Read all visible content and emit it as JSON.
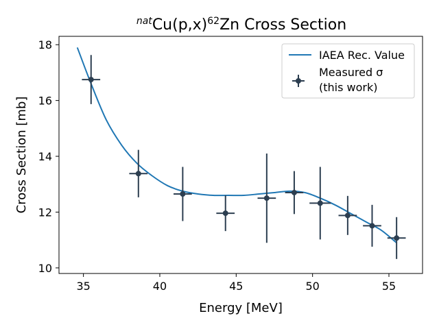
{
  "chart_data": {
    "type": "line",
    "title": {
      "prefix_sup": "nat",
      "main": "Cu(p,x)",
      "mass_sup": "62",
      "suffix": "Zn Cross Section"
    },
    "xlabel": "Energy [MeV]",
    "ylabel": "Cross Section [mb]",
    "xlim": [
      33.4,
      57.2
    ],
    "ylim": [
      9.8,
      18.3
    ],
    "xticks": [
      35,
      40,
      45,
      50,
      55
    ],
    "yticks": [
      10,
      12,
      14,
      16,
      18
    ],
    "grid": false,
    "legend_position": "top-right",
    "series": [
      {
        "name": "IAEA Rec. Value",
        "kind": "line",
        "color": "#1f77b4",
        "x": [
          34.6,
          35.5,
          36.5,
          37.5,
          38.5,
          39.5,
          40.5,
          41.5,
          42.5,
          43.5,
          44.5,
          45.5,
          46.5,
          47.5,
          48.5,
          49.5,
          50.5,
          51.5,
          52.5,
          53.5,
          54.5,
          55.5
        ],
        "y": [
          17.9,
          16.6,
          15.3,
          14.4,
          13.75,
          13.3,
          12.95,
          12.75,
          12.65,
          12.6,
          12.6,
          12.6,
          12.65,
          12.7,
          12.75,
          12.7,
          12.5,
          12.25,
          11.95,
          11.65,
          11.35,
          10.9
        ]
      },
      {
        "name_line1": "Measured σ",
        "name_line2": "(this work)",
        "kind": "errorbar",
        "color": "#2c3e50",
        "points": [
          {
            "x": 35.5,
            "y": 16.75,
            "xerr": 0.6,
            "yerr": 0.88
          },
          {
            "x": 38.6,
            "y": 13.38,
            "xerr": 0.6,
            "yerr": 0.85
          },
          {
            "x": 41.5,
            "y": 12.65,
            "xerr": 0.6,
            "yerr": 0.97
          },
          {
            "x": 44.3,
            "y": 11.96,
            "xerr": 0.6,
            "yerr": 0.64
          },
          {
            "x": 47.0,
            "y": 12.5,
            "xerr": 0.6,
            "yerr": 1.6
          },
          {
            "x": 48.8,
            "y": 12.7,
            "xerr": 0.6,
            "yerr": 0.77
          },
          {
            "x": 50.5,
            "y": 12.32,
            "xerr": 0.7,
            "yerr": 1.3
          },
          {
            "x": 52.3,
            "y": 11.88,
            "xerr": 0.6,
            "yerr": 0.7
          },
          {
            "x": 53.9,
            "y": 11.51,
            "xerr": 0.6,
            "yerr": 0.75
          },
          {
            "x": 55.5,
            "y": 11.07,
            "xerr": 0.6,
            "yerr": 0.75
          }
        ]
      }
    ]
  }
}
